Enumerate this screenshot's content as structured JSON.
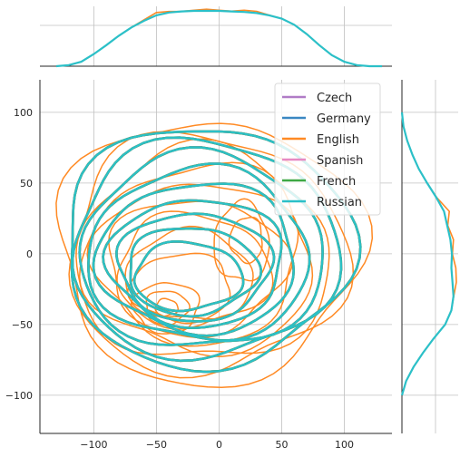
{
  "chart_data": {
    "type": "kde-jointplot",
    "xticks": [
      -100,
      -50,
      0,
      50,
      100
    ],
    "yticks": [
      100,
      50,
      0,
      -50,
      -100
    ],
    "xlim": [
      -143,
      138
    ],
    "ylim": [
      -127,
      123
    ],
    "grid": true,
    "legend_position": "top-right",
    "series": [
      {
        "name": "Czech",
        "color": "#b07cc6"
      },
      {
        "name": "Germany",
        "color": "#3a87c2"
      },
      {
        "name": "English",
        "color": "#ff8a24"
      },
      {
        "name": "Spanish",
        "color": "#e78ac3"
      },
      {
        "name": "French",
        "color": "#3ea844"
      },
      {
        "name": "Russian",
        "color": "#2bc0c8"
      }
    ],
    "kde_contours": {
      "consensus_levels": [
        {
          "cx": -10,
          "cy": 5,
          "rx": 115,
          "ry": 85
        },
        {
          "cx": -12,
          "cy": 3,
          "rx": 106,
          "ry": 77
        },
        {
          "cx": -14,
          "cy": 1,
          "rx": 97,
          "ry": 69
        },
        {
          "cx": -16,
          "cy": -1,
          "rx": 88,
          "ry": 61
        },
        {
          "cx": -17,
          "cy": -3,
          "rx": 79,
          "ry": 53
        },
        {
          "cx": -18,
          "cy": -6,
          "rx": 70,
          "ry": 45
        },
        {
          "cx": -20,
          "cy": -9,
          "rx": 61,
          "ry": 38
        },
        {
          "cx": -22,
          "cy": -12,
          "rx": 52,
          "ry": 31
        },
        {
          "cx": -25,
          "cy": -16,
          "rx": 43,
          "ry": 24
        }
      ],
      "english_levels": [
        {
          "cx": -9,
          "cy": 2,
          "rx": 121,
          "ry": 93
        },
        {
          "cx": -11,
          "cy": 0,
          "rx": 111,
          "ry": 84
        },
        {
          "cx": -13,
          "cy": -2,
          "rx": 101,
          "ry": 75
        },
        {
          "cx": -15,
          "cy": -4,
          "rx": 91,
          "ry": 66
        },
        {
          "cx": -17,
          "cy": -6,
          "rx": 81,
          "ry": 57
        },
        {
          "cx": -19,
          "cy": -9,
          "rx": 71,
          "ry": 48
        },
        {
          "cx": -21,
          "cy": -12,
          "rx": 61,
          "ry": 40
        },
        {
          "cx": -24,
          "cy": -16,
          "rx": 51,
          "ry": 32
        },
        {
          "cx": -30,
          "cy": -24,
          "rx": 40,
          "ry": 24
        },
        {
          "cx": -42,
          "cy": -38,
          "rx": 26,
          "ry": 18
        },
        {
          "cx": -42,
          "cy": -38,
          "rx": 17,
          "ry": 12
        },
        {
          "cx": -42,
          "cy": -38,
          "rx": 9,
          "ry": 6
        },
        {
          "cx": 18,
          "cy": 8,
          "rx": 22,
          "ry": 28
        },
        {
          "cx": 22,
          "cy": 10,
          "rx": 13,
          "ry": 16
        }
      ]
    },
    "x_marginal_density": [
      [
        -130,
        0.0
      ],
      [
        -120,
        0.02
      ],
      [
        -110,
        0.08
      ],
      [
        -100,
        0.22
      ],
      [
        -90,
        0.38
      ],
      [
        -80,
        0.55
      ],
      [
        -70,
        0.7
      ],
      [
        -60,
        0.82
      ],
      [
        -50,
        0.92
      ],
      [
        -40,
        0.97
      ],
      [
        -30,
        0.99
      ],
      [
        -20,
        1.0
      ],
      [
        -10,
        1.0
      ],
      [
        0,
        1.0
      ],
      [
        10,
        0.99
      ],
      [
        20,
        0.98
      ],
      [
        30,
        0.96
      ],
      [
        40,
        0.92
      ],
      [
        50,
        0.86
      ],
      [
        60,
        0.75
      ],
      [
        70,
        0.58
      ],
      [
        80,
        0.38
      ],
      [
        90,
        0.2
      ],
      [
        100,
        0.08
      ],
      [
        110,
        0.02
      ],
      [
        120,
        0.0
      ],
      [
        130,
        0.0
      ]
    ],
    "y_marginal_density": [
      [
        -100,
        0.0
      ],
      [
        -90,
        0.08
      ],
      [
        -80,
        0.22
      ],
      [
        -70,
        0.4
      ],
      [
        -60,
        0.6
      ],
      [
        -50,
        0.82
      ],
      [
        -40,
        0.94
      ],
      [
        -30,
        0.98
      ],
      [
        -20,
        0.96
      ],
      [
        -10,
        0.94
      ],
      [
        0,
        0.95
      ],
      [
        10,
        0.92
      ],
      [
        20,
        0.86
      ],
      [
        30,
        0.8
      ],
      [
        40,
        0.65
      ],
      [
        50,
        0.48
      ],
      [
        60,
        0.32
      ],
      [
        70,
        0.2
      ],
      [
        80,
        0.1
      ],
      [
        90,
        0.03
      ],
      [
        100,
        0.0
      ]
    ],
    "x_marginal_english_bumps": [
      [
        -50,
        0.05
      ],
      [
        -10,
        0.03
      ],
      [
        25,
        0.04
      ]
    ],
    "y_marginal_english_bumps": [
      [
        30,
        0.1
      ],
      [
        10,
        0.06
      ],
      [
        -10,
        0.08
      ],
      [
        -20,
        0.07
      ]
    ]
  }
}
